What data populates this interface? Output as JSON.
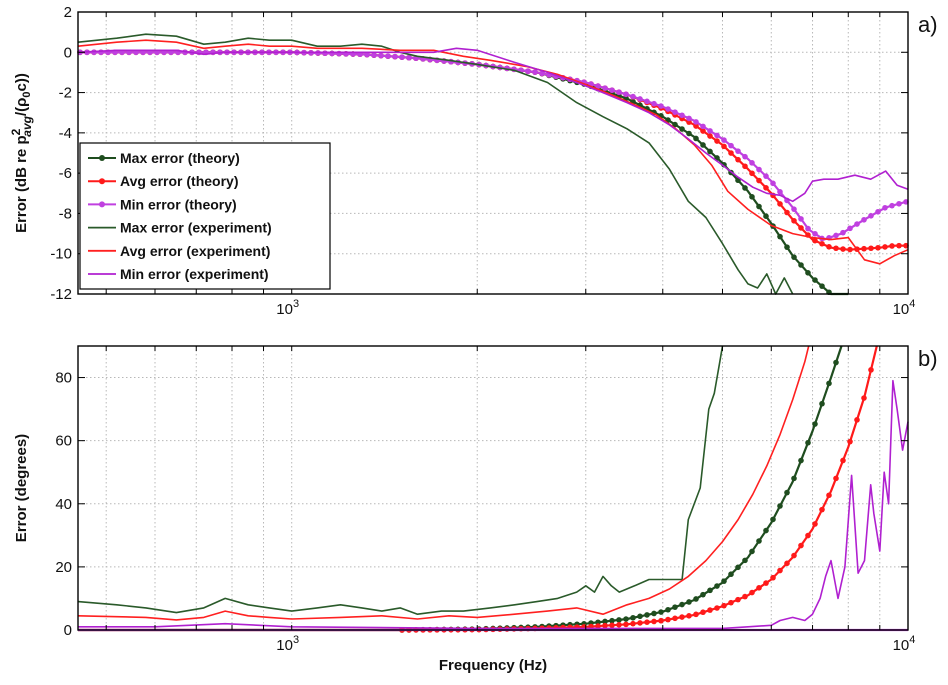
{
  "chart_data": [
    {
      "type": "line",
      "panel_label": "a)",
      "ylabel": "Error (dB re p",
      "ylabel_sup": "2",
      "ylabel_sub": "avg",
      "ylabel_tail": "/(ρ",
      "ylabel_sub2": "0",
      "ylabel_end": "c))",
      "xscale": "log",
      "xlim": [
        450,
        10000
      ],
      "ylim": [
        -12,
        2
      ],
      "yticks": [
        "2",
        "0",
        "-2",
        "-4",
        "-6",
        "-8",
        "-10",
        "-12"
      ],
      "xtick_labels": [
        {
          "base": "10",
          "exp": "3"
        },
        {
          "base": "10",
          "exp": "4"
        }
      ],
      "grid": true,
      "legend": "bottom-left",
      "series": [
        {
          "name": "Max error (theory)",
          "color": "#1f4d1f",
          "marker": true,
          "x": [
            450,
            600,
            800,
            1000,
            1300,
            1600,
            2000,
            2500,
            3000,
            3500,
            4000,
            4500,
            5000,
            5500,
            6000,
            6500,
            7000,
            7500,
            8000
          ],
          "y": [
            0,
            0,
            0,
            0,
            -0.1,
            -0.3,
            -0.6,
            -1.0,
            -1.6,
            -2.3,
            -3.2,
            -4.2,
            -5.5,
            -6.9,
            -8.5,
            -10.1,
            -11.2,
            -12,
            -12
          ]
        },
        {
          "name": "Avg error (theory)",
          "color": "#ff1a1a",
          "marker": true,
          "x": [
            450,
            600,
            800,
            1000,
            1300,
            1600,
            2000,
            2500,
            3000,
            3500,
            4000,
            4500,
            5000,
            5500,
            6000,
            6500,
            7000,
            7500,
            8000,
            8500,
            9000,
            9500,
            10000
          ],
          "y": [
            0,
            0,
            0,
            0,
            -0.1,
            -0.3,
            -0.6,
            -1.0,
            -1.5,
            -2.1,
            -2.8,
            -3.6,
            -4.6,
            -5.8,
            -7.0,
            -8.3,
            -9.3,
            -9.7,
            -9.8,
            -9.75,
            -9.7,
            -9.6,
            -9.6
          ]
        },
        {
          "name": "Min error (theory)",
          "color": "#c040e0",
          "marker": true,
          "x": [
            450,
            600,
            800,
            1000,
            1300,
            1600,
            2000,
            2500,
            3000,
            3500,
            4000,
            4500,
            5000,
            5500,
            6000,
            6500,
            6900,
            7300,
            7800,
            8500,
            9200,
            10000
          ],
          "y": [
            0,
            0,
            0,
            0,
            -0.1,
            -0.3,
            -0.6,
            -1.0,
            -1.5,
            -2.1,
            -2.7,
            -3.4,
            -4.3,
            -5.3,
            -6.4,
            -7.7,
            -8.8,
            -9.3,
            -9.0,
            -8.3,
            -7.7,
            -7.4
          ]
        },
        {
          "name": "Max error (experiment)",
          "color": "#2a5a2a",
          "marker": false,
          "x": [
            450,
            520,
            580,
            650,
            720,
            780,
            850,
            920,
            1000,
            1100,
            1200,
            1300,
            1400,
            1500,
            1600,
            1800,
            2000,
            2300,
            2600,
            2900,
            3200,
            3500,
            3800,
            4100,
            4400,
            4700,
            5000,
            5300,
            5500,
            5700,
            5900,
            6100,
            6300,
            6500
          ],
          "y": [
            0.5,
            0.7,
            0.9,
            0.8,
            0.4,
            0.5,
            0.7,
            0.6,
            0.6,
            0.3,
            0.3,
            0.4,
            0.3,
            0,
            -0.2,
            -0.4,
            -0.6,
            -0.9,
            -1.5,
            -2.5,
            -3.2,
            -3.8,
            -4.5,
            -5.8,
            -7.4,
            -8.2,
            -9.5,
            -10.8,
            -11.5,
            -11.7,
            -11.0,
            -12,
            -11.2,
            -12
          ]
        },
        {
          "name": "Avg error (experiment)",
          "color": "#ff2020",
          "marker": false,
          "x": [
            450,
            520,
            580,
            650,
            720,
            780,
            850,
            920,
            1000,
            1100,
            1200,
            1300,
            1500,
            1700,
            1900,
            2100,
            2400,
            2700,
            3000,
            3300,
            3600,
            3900,
            4200,
            4500,
            4800,
            5100,
            5500,
            6000,
            6500,
            7000,
            7500,
            8000,
            8500,
            9000,
            9500,
            10000
          ],
          "y": [
            0.3,
            0.5,
            0.6,
            0.5,
            0.2,
            0.3,
            0.4,
            0.3,
            0.3,
            0.2,
            0.2,
            0.2,
            0.1,
            0.1,
            -0.2,
            -0.4,
            -0.7,
            -1.1,
            -1.6,
            -2.1,
            -2.6,
            -3.1,
            -3.8,
            -4.6,
            -5.6,
            -6.9,
            -7.8,
            -8.6,
            -9.0,
            -9.2,
            -9.3,
            -9.2,
            -10.3,
            -10.5,
            -10.1,
            -9.8
          ]
        },
        {
          "name": "Min error (experiment)",
          "color": "#b020d0",
          "marker": false,
          "x": [
            450,
            520,
            580,
            650,
            720,
            780,
            850,
            920,
            1000,
            1100,
            1300,
            1500,
            1700,
            1850,
            2000,
            2300,
            2600,
            2900,
            3200,
            3500,
            3800,
            4100,
            4400,
            4700,
            5000,
            5300,
            5600,
            5900,
            6200,
            6500,
            6800,
            7000,
            7300,
            7700,
            8200,
            8700,
            9200,
            9600,
            10000
          ],
          "y": [
            0,
            0.1,
            0.1,
            0.1,
            -0.1,
            0,
            0,
            0,
            0,
            0,
            0,
            0,
            0,
            0.2,
            0.1,
            -0.5,
            -1.0,
            -1.5,
            -2.0,
            -2.5,
            -3.0,
            -3.6,
            -4.3,
            -5.0,
            -5.6,
            -6.2,
            -6.7,
            -7.0,
            -7.1,
            -7.4,
            -7.0,
            -6.4,
            -6.3,
            -6.3,
            -6.1,
            -6.3,
            -5.9,
            -6.6,
            -6.8
          ]
        }
      ]
    },
    {
      "type": "line",
      "panel_label": "b)",
      "ylabel": "Error (degrees)",
      "xlabel": "Frequency (Hz)",
      "xscale": "log",
      "xlim": [
        450,
        10000
      ],
      "ylim": [
        0,
        90
      ],
      "yticks": [
        "80",
        "60",
        "40",
        "20",
        "0"
      ],
      "xtick_labels": [
        {
          "base": "10",
          "exp": "3"
        },
        {
          "base": "10",
          "exp": "4"
        }
      ],
      "grid": true,
      "series": [
        {
          "name": "Max error (theory)",
          "color": "#1f4d1f",
          "marker": true,
          "x": [
            450,
            1000,
            1500,
            2000,
            2500,
            3000,
            3500,
            4000,
            4500,
            5000,
            5500,
            6000,
            6500,
            7000,
            7500,
            7800
          ],
          "y": [
            0,
            0,
            0,
            0.3,
            1.0,
            2.0,
            3.5,
            5.8,
            9.5,
            15,
            23,
            34,
            47,
            63,
            80,
            90
          ]
        },
        {
          "name": "Avg error (theory)",
          "color": "#ff1a1a",
          "marker": true,
          "x": [
            450,
            1000,
            1500,
            2000,
            2500,
            3000,
            3500,
            4000,
            4500,
            5000,
            5500,
            6000,
            6500,
            7000,
            7500,
            8000,
            8500,
            8900
          ],
          "y": [
            0,
            0,
            0,
            0.1,
            0.5,
            1.0,
            1.8,
            3.0,
            4.8,
            7.5,
            11,
            16,
            23,
            32,
            44,
            58,
            74,
            90
          ]
        },
        {
          "name": "Min error (theory)",
          "color": "#c040e0",
          "marker": true,
          "x": [
            450,
            1000,
            2000,
            4000,
            6000,
            10000
          ],
          "y": [
            0,
            0,
            0,
            0,
            0,
            0
          ]
        },
        {
          "name": "Max error (experiment)",
          "color": "#2a5a2a",
          "marker": false,
          "x": [
            450,
            520,
            580,
            650,
            720,
            780,
            850,
            920,
            1000,
            1100,
            1200,
            1300,
            1400,
            1500,
            1600,
            1750,
            1900,
            2100,
            2300,
            2500,
            2700,
            2900,
            3000,
            3100,
            3200,
            3300,
            3400,
            3600,
            3800,
            3900,
            4100,
            4300,
            4400,
            4600,
            4750,
            4850,
            4950,
            5000
          ],
          "y": [
            9,
            8,
            7,
            5.5,
            7,
            10,
            8,
            7,
            6,
            7,
            8,
            7,
            6,
            7,
            5,
            6,
            6,
            7,
            8,
            9,
            10,
            12,
            14,
            12,
            17,
            14,
            12,
            14,
            16,
            16,
            16,
            16,
            35,
            45,
            70,
            75,
            85,
            90
          ]
        },
        {
          "name": "Avg error (experiment)",
          "color": "#ff2020",
          "marker": false,
          "x": [
            450,
            520,
            580,
            650,
            720,
            780,
            850,
            920,
            1000,
            1200,
            1400,
            1600,
            1800,
            2000,
            2300,
            2600,
            2900,
            3200,
            3500,
            3800,
            4100,
            4400,
            4700,
            5000,
            5300,
            5600,
            5900,
            6200,
            6500,
            6800,
            6900
          ],
          "y": [
            4.5,
            4.2,
            4,
            3.2,
            4,
            6,
            4.5,
            4,
            3.5,
            4,
            4.5,
            3.5,
            4.5,
            4,
            5,
            6,
            7,
            5,
            8,
            10,
            13,
            17,
            22,
            28,
            35,
            43,
            52,
            62,
            73,
            85,
            90
          ]
        },
        {
          "name": "Min error (experiment)",
          "color": "#b020d0",
          "marker": false,
          "x": [
            450,
            600,
            780,
            1000,
            2000,
            3000,
            4000,
            5000,
            5500,
            6000,
            6200,
            6500,
            6800,
            7000,
            7200,
            7350,
            7500,
            7700,
            7900,
            8100,
            8300,
            8500,
            8700,
            8800,
            9000,
            9150,
            9300,
            9450,
            9600,
            9800,
            10000
          ],
          "y": [
            1,
            1,
            2,
            1,
            0.5,
            0.5,
            0.5,
            0.5,
            1,
            1.5,
            3,
            4,
            3,
            5,
            10,
            17,
            22,
            10,
            20,
            49,
            18,
            22,
            46,
            37,
            25,
            50,
            40,
            79,
            70,
            57,
            66
          ]
        }
      ]
    }
  ]
}
